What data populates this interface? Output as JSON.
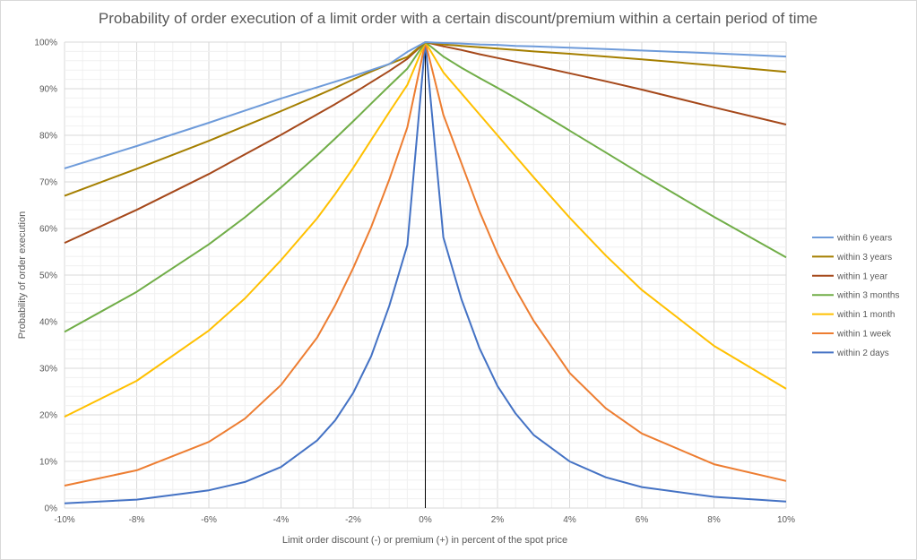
{
  "chart_data": {
    "type": "line",
    "title": "Probability of order execution of a limit order with a certain discount/premium within a certain period of time",
    "xlabel": "Limit order discount (-) or premium (+) in percent of the spot price",
    "ylabel": "Probability of order execution",
    "xlim": [
      -10,
      10
    ],
    "ylim": [
      0,
      100
    ],
    "grid": true,
    "legend_position": "right",
    "x_ticks": [
      "-10%",
      "-8%",
      "-6%",
      "-4%",
      "-2%",
      "0%",
      "2%",
      "4%",
      "6%",
      "8%",
      "10%"
    ],
    "y_ticks": [
      "0%",
      "10%",
      "20%",
      "30%",
      "40%",
      "50%",
      "60%",
      "70%",
      "80%",
      "90%",
      "100%"
    ],
    "x": [
      -10,
      -8,
      -6,
      -5,
      -4,
      -3,
      -2.5,
      -2,
      -1.5,
      -1,
      -0.5,
      0,
      0.5,
      1,
      1.5,
      2,
      2.5,
      3,
      4,
      5,
      6,
      8,
      10
    ],
    "series": [
      {
        "name": "within 6 years",
        "color": "#6E9BDA",
        "values": [
          72.9,
          77.7,
          82.7,
          85.3,
          87.9,
          90.3,
          91.5,
          92.7,
          94.0,
          95.3,
          97.9,
          100,
          99.8,
          99.7,
          99.5,
          99.4,
          99.2,
          99.1,
          98.8,
          98.5,
          98.2,
          97.6,
          96.9
        ]
      },
      {
        "name": "within 3 years",
        "color": "#A57F00",
        "values": [
          67.0,
          72.8,
          78.8,
          82.0,
          85.2,
          88.5,
          90.2,
          92.0,
          93.7,
          95.3,
          96.8,
          100,
          99.5,
          99.2,
          98.9,
          98.6,
          98.3,
          98.0,
          97.5,
          96.9,
          96.3,
          95.0,
          93.6
        ]
      },
      {
        "name": "within 1 year",
        "color": "#A5481A",
        "values": [
          56.9,
          64.0,
          71.7,
          75.9,
          80.1,
          84.5,
          86.7,
          89.0,
          91.4,
          93.8,
          96.4,
          100,
          99.1,
          98.3,
          97.4,
          96.6,
          95.8,
          95.0,
          93.3,
          91.6,
          89.8,
          86.0,
          82.3
        ]
      },
      {
        "name": "within 3 months",
        "color": "#70AD47",
        "values": [
          37.8,
          46.4,
          56.6,
          62.4,
          68.8,
          75.7,
          79.3,
          83.0,
          86.8,
          90.6,
          94.3,
          100,
          96.9,
          94.5,
          92.3,
          90.2,
          88.0,
          85.7,
          81.0,
          76.3,
          71.6,
          62.5,
          53.8
        ]
      },
      {
        "name": "within 1 month",
        "color": "#FFC000",
        "values": [
          19.6,
          27.3,
          38.1,
          45.0,
          53.2,
          62.2,
          67.4,
          73.0,
          79.0,
          85.0,
          90.8,
          100,
          93.5,
          89.0,
          84.5,
          80.0,
          75.5,
          71.0,
          62.3,
          54.2,
          46.8,
          34.8,
          25.6
        ]
      },
      {
        "name": "within 1 week",
        "color": "#ED7D31",
        "values": [
          4.8,
          8.1,
          14.2,
          19.2,
          26.4,
          36.6,
          43.5,
          51.5,
          60.3,
          70.5,
          81.7,
          100,
          84.4,
          74.0,
          63.7,
          54.6,
          47.0,
          40.2,
          29.0,
          21.4,
          16.0,
          9.4,
          5.8
        ]
      },
      {
        "name": "within 2 days",
        "color": "#4472C4",
        "values": [
          1.0,
          1.8,
          3.8,
          5.6,
          8.8,
          14.5,
          18.8,
          24.7,
          32.6,
          43.4,
          56.4,
          100,
          58.1,
          44.8,
          34.3,
          26.2,
          20.3,
          15.7,
          10.0,
          6.6,
          4.5,
          2.4,
          1.4
        ]
      }
    ]
  }
}
